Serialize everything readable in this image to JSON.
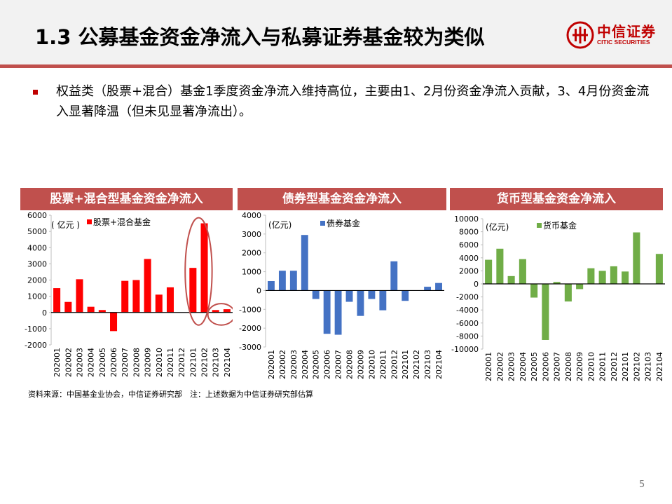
{
  "header": {
    "title": "1.3 公募基金资金净流入与私募证券基金较为类似"
  },
  "logo": {
    "name": "中信证券",
    "en": "CITIC SECURITIES"
  },
  "bullet": {
    "text": "权益类（股票+混合）基金1季度资金净流入维持高位，主要由1、2月份资金净流入贡献，3、4月份资金流入显著降温（但未见显著净流出）。"
  },
  "panels": [
    {
      "title": "股票+混合型基金资金净流入"
    },
    {
      "title": "债券型基金资金净流入"
    },
    {
      "title": "货币型基金资金净流入"
    }
  ],
  "source": "资料来源：中国基金业协会，中信证券研究部　注：上述数据为中信证券研究部估算",
  "page_number": "5",
  "colors": {
    "accent": "#c0504d",
    "brand": "#c00000",
    "equity": "#ff0000",
    "bond": "#4472c4",
    "money": "#70ad47",
    "highlight": "#c0504d"
  },
  "chart_data": [
    {
      "type": "bar",
      "unit_label": "( 亿元 )",
      "categories": [
        "202001",
        "202002",
        "202003",
        "202004",
        "202005",
        "202006",
        "202007",
        "202008",
        "202009",
        "202010",
        "202011",
        "202012",
        "202101",
        "202102",
        "202103",
        "202104"
      ],
      "series": [
        {
          "name": "股票+混合基金",
          "values": [
            1500,
            650,
            2050,
            350,
            150,
            -1150,
            1950,
            2000,
            3300,
            1100,
            1550,
            0,
            2750,
            5500,
            150,
            200
          ]
        }
      ],
      "ylim": [
        -2000,
        6000
      ],
      "yticks": [
        "6000",
        "5000",
        "4000",
        "3000",
        "2000",
        "1000",
        "0",
        "-1000",
        "-2000"
      ],
      "highlight_indices": [
        [
          12,
          13
        ],
        [
          14,
          15
        ]
      ]
    },
    {
      "type": "bar",
      "unit_label": "(亿元)",
      "categories": [
        "202001",
        "202002",
        "202003",
        "202004",
        "202005",
        "202006",
        "202007",
        "202008",
        "202009",
        "202010",
        "202011",
        "202012",
        "202101",
        "202102",
        "202103",
        "202104"
      ],
      "series": [
        {
          "name": "债券基金",
          "values": [
            500,
            1050,
            1050,
            2950,
            -450,
            -2300,
            -2350,
            -600,
            -1350,
            -450,
            -1050,
            1550,
            -550,
            0,
            200,
            400
          ]
        }
      ],
      "ylim": [
        -3000,
        4000
      ],
      "yticks": [
        "4000",
        "3000",
        "2000",
        "1000",
        "0",
        "-1000",
        "-2000",
        "-3000"
      ]
    },
    {
      "type": "bar",
      "unit_label": "(亿元)",
      "categories": [
        "202001",
        "202002",
        "202003",
        "202004",
        "202005",
        "202006",
        "202007",
        "202008",
        "202009",
        "202010",
        "202011",
        "202012",
        "202101",
        "202102",
        "202103",
        "202104"
      ],
      "series": [
        {
          "name": "货币基金",
          "values": [
            3700,
            5400,
            1200,
            3800,
            -2100,
            -8600,
            300,
            -2700,
            -800,
            2400,
            2000,
            2700,
            1900,
            7900,
            0,
            4600
          ]
        }
      ],
      "ylim": [
        -10000,
        10000
      ],
      "yticks": [
        "10000",
        "8000",
        "6000",
        "4000",
        "2000",
        "0",
        "-2000",
        "-4000",
        "-6000",
        "-8000",
        "-10000"
      ]
    }
  ]
}
